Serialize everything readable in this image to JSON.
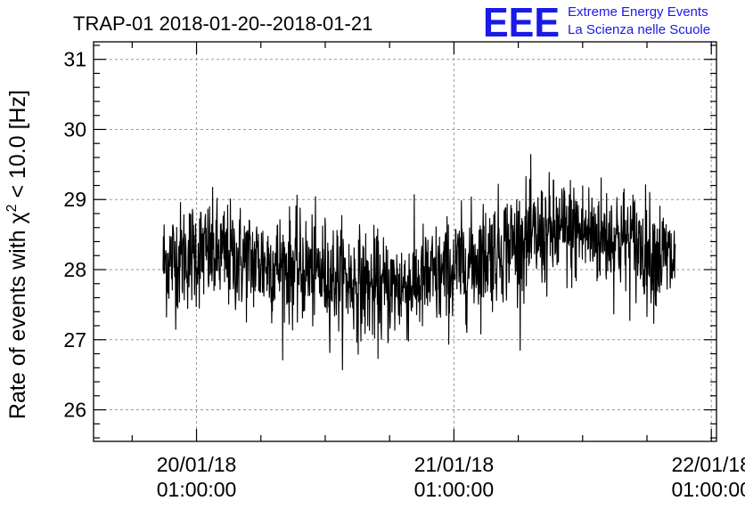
{
  "chart_data": {
    "type": "line",
    "title": "TRAP-01 2018-01-20--2018-01-21",
    "ylabel_main": "Rate of events with χ",
    "ylabel_sup": "2",
    "ylabel_tail": " < 10.0 [Hz]",
    "xlabel": "",
    "ylim": [
      25.55,
      31.25
    ],
    "yticks": [
      26,
      27,
      28,
      29,
      30,
      31
    ],
    "xlim": [
      -0.4,
      2.02
    ],
    "xticks": [
      {
        "x": 0,
        "line1": "20/01/18",
        "line2": "01:00:00"
      },
      {
        "x": 1,
        "line1": "21/01/18",
        "line2": "01:00:00"
      },
      {
        "x": 2,
        "line1": "22/01/18",
        "line2": "01:00:00"
      }
    ],
    "grid": true,
    "series": [
      {
        "color": "#000000",
        "x_start": -0.13,
        "x_end": 1.86,
        "noise_amplitude_hz": 0.62,
        "level_points": [
          {
            "x": -0.13,
            "y": 28.1
          },
          {
            "x": 0.0,
            "y": 28.25
          },
          {
            "x": 0.25,
            "y": 28.1
          },
          {
            "x": 0.5,
            "y": 27.95
          },
          {
            "x": 0.72,
            "y": 27.7
          },
          {
            "x": 0.95,
            "y": 27.9
          },
          {
            "x": 1.2,
            "y": 28.35
          },
          {
            "x": 1.45,
            "y": 28.55
          },
          {
            "x": 1.65,
            "y": 28.45
          },
          {
            "x": 1.86,
            "y": 28.1
          }
        ]
      }
    ]
  },
  "logo": {
    "text": "EEE",
    "line1": "Extreme Energy Events",
    "line2": "La Scienza nelle Scuole",
    "color": "#1a1ae6"
  }
}
